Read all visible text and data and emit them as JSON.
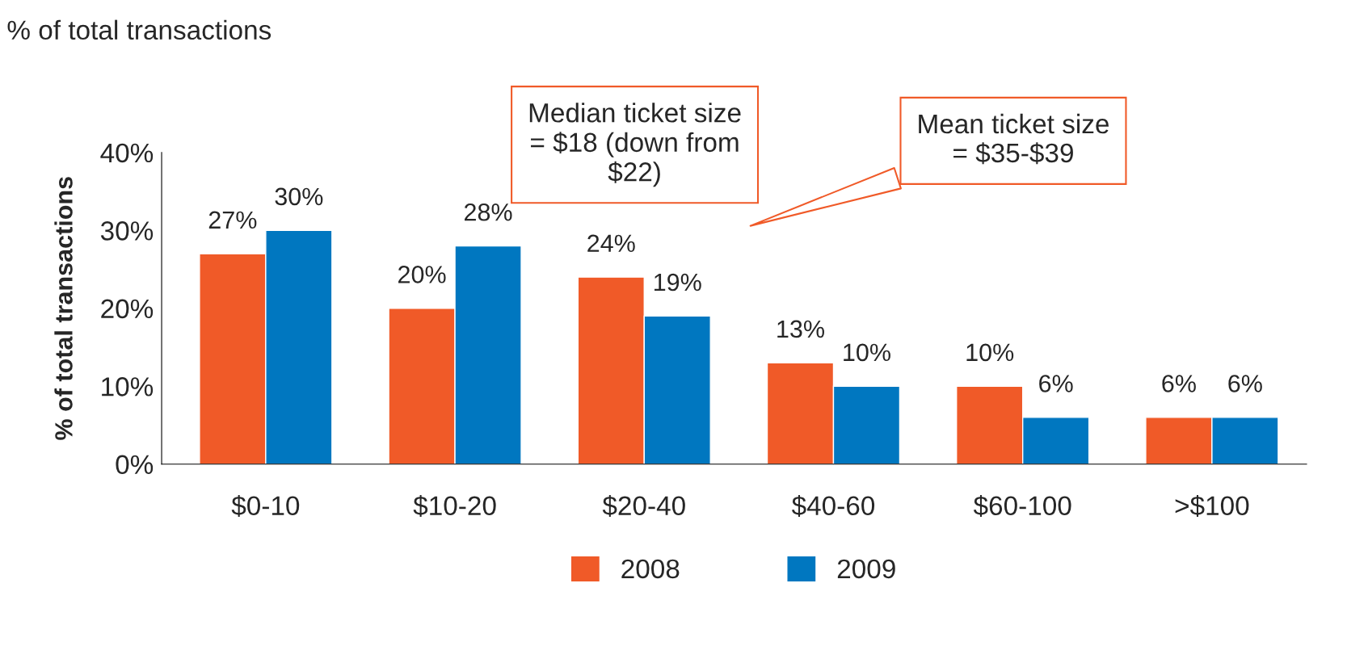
{
  "chart_data": {
    "type": "bar",
    "title": "% of total transactions",
    "ylabel": "% of total transactions",
    "categories": [
      "$0-10",
      "$10-20",
      "$20-40",
      "$40-60",
      "$60-100",
      ">$100"
    ],
    "series": [
      {
        "name": "2008",
        "color": "#f05a28",
        "values": [
          27,
          20,
          24,
          13,
          10,
          6
        ]
      },
      {
        "name": "2009",
        "color": "#0077c0",
        "values": [
          30,
          28,
          19,
          10,
          6,
          6
        ]
      }
    ],
    "value_labels": [
      [
        "27%",
        "20%",
        "24%",
        "13%",
        "10%",
        "6%"
      ],
      [
        "30%",
        "28%",
        "19%",
        "10%",
        "6%",
        "6%"
      ]
    ],
    "ylim": [
      0,
      40
    ],
    "yticks": [
      {
        "value": 0,
        "label": "0%"
      },
      {
        "value": 10,
        "label": "10%"
      },
      {
        "value": 20,
        "label": "20%"
      },
      {
        "value": 30,
        "label": "30%"
      },
      {
        "value": 40,
        "label": "40%"
      }
    ],
    "annotations": [
      "Median ticket size\n= $18 (down from\n$22)",
      "Mean ticket size\n= $35-$39"
    ],
    "grid": false,
    "legend": "bottom"
  }
}
